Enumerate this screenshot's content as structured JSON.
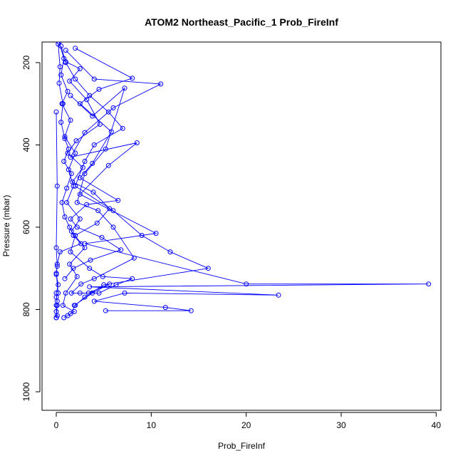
{
  "chart_data": {
    "type": "line",
    "title": "ATOM2 Northeast_Pacific_1 Prob_FireInf",
    "xlabel": "Prob_FireInf",
    "ylabel": "Pressure (mbar)",
    "xlim": [
      -1.5,
      40.5
    ],
    "ylim": [
      1045,
      150
    ],
    "y_reversed": true,
    "x_ticks": [
      0,
      10,
      20,
      30,
      40
    ],
    "y_ticks": [
      200,
      400,
      600,
      800,
      1000
    ],
    "grid": false,
    "series_color": "#0000ff",
    "marker": "open-circle",
    "series": [
      {
        "x": [
          0.3,
          0.8,
          0.5,
          1.2,
          0.6,
          1.5,
          0.9,
          2.0,
          1.3,
          1.8,
          1.1,
          2.5,
          1.6,
          3.0,
          1.4,
          2.2,
          1.0,
          0.7,
          1.9,
          1.2,
          0.8
        ],
        "y": [
          150,
          190,
          230,
          270,
          300,
          340,
          380,
          420,
          460,
          500,
          540,
          580,
          610,
          650,
          690,
          720,
          760,
          790,
          805,
          815,
          820
        ]
      },
      {
        "x": [
          0.5,
          1.0,
          2.0,
          3.5,
          5.5,
          7.0,
          4.0,
          3.0,
          2.0,
          6.0,
          9.0,
          12.0,
          16.0,
          5.0,
          3.0,
          2.0,
          1.5
        ],
        "y": [
          160,
          200,
          240,
          280,
          320,
          360,
          400,
          440,
          500,
          560,
          620,
          660,
          700,
          740,
          770,
          790,
          810
        ]
      },
      {
        "x": [
          1.0,
          4.0,
          11.0,
          6.0,
          3.0,
          1.5,
          8.5,
          5.5,
          2.5,
          10.5,
          3.0,
          20.0,
          39.2,
          3.5,
          23.4,
          7.2,
          4.0,
          11.5,
          14.2,
          5.2
        ],
        "y": [
          170,
          240,
          252,
          310,
          370,
          430,
          395,
          450,
          520,
          615,
          640,
          738,
          738,
          745,
          765,
          760,
          780,
          795,
          803,
          803
        ]
      },
      {
        "x": [
          0.2,
          0.4,
          0.3,
          0.7,
          0.5,
          0.9,
          1.3,
          0.8,
          1.6,
          1.1,
          0.6,
          0.9,
          1.4,
          1.8,
          2.6,
          0.4,
          0.1,
          0.0,
          0.2,
          0.0,
          0.1,
          0.0
        ],
        "y": [
          155,
          210,
          250,
          300,
          345,
          385,
          410,
          440,
          470,
          505,
          540,
          575,
          600,
          620,
          640,
          660,
          690,
          715,
          740,
          760,
          790,
          820
        ]
      },
      {
        "x": [
          2.0,
          8.0,
          4.5,
          2.5,
          5.8,
          3.8,
          2.5,
          6.5,
          3.2,
          1.5,
          2.2,
          4.8,
          6.8,
          3.6,
          1.8,
          0.9
        ],
        "y": [
          165,
          238,
          265,
          300,
          368,
          445,
          480,
          535,
          545,
          580,
          600,
          625,
          655,
          680,
          700,
          725
        ]
      },
      {
        "x": [
          0.0,
          0.1,
          0.0,
          0.1,
          0.0,
          0.2,
          0.0,
          0.1,
          0.0,
          0.0,
          0.1,
          0.0
        ],
        "y": [
          320,
          500,
          650,
          695,
          712,
          760,
          770,
          780,
          790,
          805,
          815,
          820
        ]
      },
      {
        "x": [
          1.5,
          3.8,
          7.2,
          5.2,
          3.0,
          2.2,
          4.4,
          6.0,
          8.2,
          4.0,
          2.6,
          1.6,
          3.4,
          5.6,
          3.8,
          1.9
        ],
        "y": [
          280,
          330,
          262,
          410,
          470,
          540,
          560,
          600,
          675,
          725,
          738,
          760,
          760,
          738,
          760,
          790
        ]
      },
      {
        "x": [
          1.0,
          2.5,
          1.4,
          3.2,
          4.6,
          2.1,
          1.2,
          2.8,
          1.7,
          3.9,
          5.6,
          4.3,
          2.0,
          1.5,
          3.5,
          4.9,
          8.0,
          6.3,
          4.5,
          2.5
        ],
        "y": [
          198,
          215,
          245,
          290,
          350,
          390,
          420,
          455,
          490,
          515,
          555,
          590,
          620,
          660,
          700,
          720,
          725,
          740,
          760,
          760
        ]
      }
    ]
  }
}
